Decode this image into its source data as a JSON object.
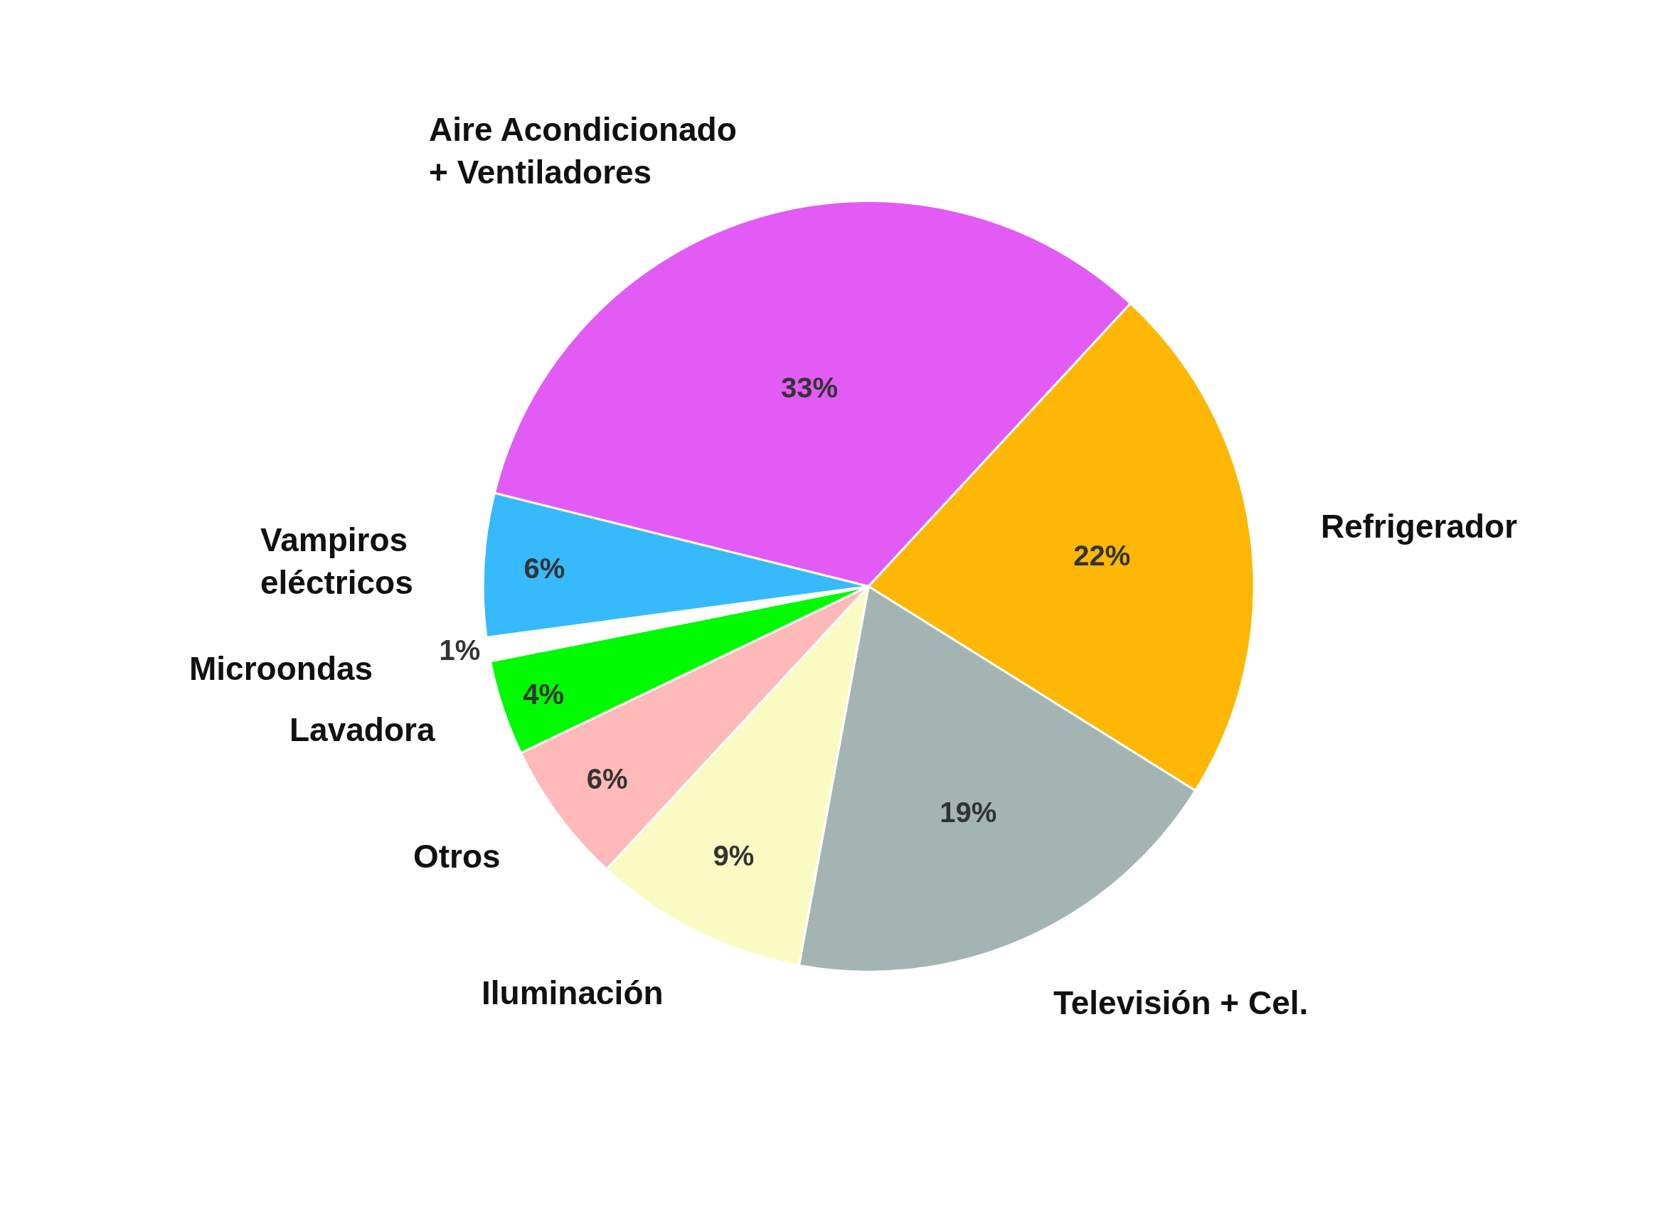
{
  "chart_data": {
    "type": "pie",
    "categories": [
      "Aire Acondicionado\n+ Ventiladores",
      "Refrigerador",
      "Televisión + Cel.",
      "Iluminación",
      "Otros",
      "Lavadora",
      "Microondas",
      "Vampiros\neléctricos"
    ],
    "values": [
      33,
      22,
      19,
      9,
      6,
      4,
      1,
      6
    ],
    "colors": [
      "#e35bf5",
      "#fdb704",
      "#a4b4b3",
      "#fafbc3",
      "#fdbab8",
      "#00fb00",
      "#ffffff",
      "#36bafc"
    ],
    "value_labels": [
      "33%",
      "22%",
      "19%",
      "9%",
      "6%",
      "4%",
      "1%",
      "6%"
    ]
  }
}
